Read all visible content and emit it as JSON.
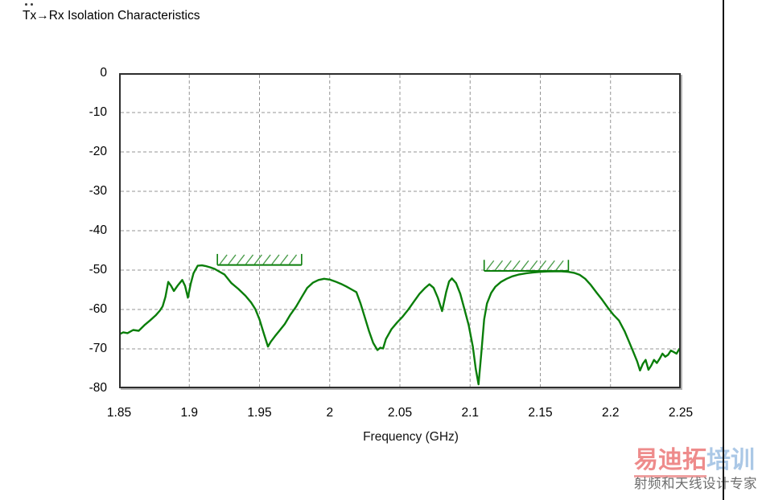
{
  "page": {
    "title": "Tx→Rx Isolation Characteristics"
  },
  "watermark": {
    "brand_red": "易迪拓",
    "brand_blue": "培训",
    "tagline": "射频和天线设计专家",
    "brand_red_color": "#ee8b8b",
    "brand_blue_color": "#abc8e6",
    "tagline_color": "#6d6d6d"
  },
  "chart_data": {
    "type": "line",
    "title": "Tx→Rx Isolation Characteristics",
    "xlabel": "Frequency (GHz)",
    "ylabel": "",
    "xlim": [
      1.85,
      2.25
    ],
    "ylim": [
      -80,
      0
    ],
    "x_tick_values": [
      1.85,
      1.9,
      1.95,
      2.0,
      2.05,
      2.1,
      2.15,
      2.2,
      2.25
    ],
    "x_tick_labels": [
      "1.85",
      "1.9",
      "1.95",
      "2",
      "2.05",
      "2.1",
      "2.15",
      "2.2",
      "2.25"
    ],
    "y_tick_values": [
      0,
      -10,
      -20,
      -30,
      -40,
      -50,
      -60,
      -70,
      -80
    ],
    "y_tick_labels": [
      "0",
      "-10",
      "-20",
      "-30",
      "-40",
      "-50",
      "-60",
      "-70",
      "-80"
    ],
    "grid": "dashed",
    "grid_color": "#949494",
    "frame_color": "#2e2e2e",
    "line_color": "#0a7e0a",
    "spec_bar_color": "#0a7e0a",
    "spec_hatch_color": "#4d9e4d",
    "legend": "none",
    "spec_bars": [
      {
        "name": "tx-band-limit",
        "x1": 1.92,
        "x2": 1.98,
        "level_db": -48.7,
        "tick_height_db": 2.8,
        "hatch": "diagonal"
      },
      {
        "name": "rx-band-limit",
        "x1": 2.11,
        "x2": 2.17,
        "level_db": -50.2,
        "tick_height_db": 2.8,
        "hatch": "diagonal"
      }
    ],
    "series": [
      {
        "name": "Tx→Rx isolation (dB)",
        "x": [
          1.85,
          1.853,
          1.856,
          1.86,
          1.864,
          1.868,
          1.872,
          1.876,
          1.879,
          1.881,
          1.883,
          1.885,
          1.887,
          1.889,
          1.892,
          1.895,
          1.897,
          1.899,
          1.901,
          1.903,
          1.906,
          1.909,
          1.912,
          1.915,
          1.918,
          1.921,
          1.925,
          1.93,
          1.935,
          1.94,
          1.944,
          1.947,
          1.95,
          1.953,
          1.956,
          1.958,
          1.961,
          1.964,
          1.968,
          1.972,
          1.976,
          1.98,
          1.984,
          1.988,
          1.992,
          1.996,
          2.0,
          2.004,
          2.008,
          2.012,
          2.016,
          2.019,
          2.022,
          2.025,
          2.028,
          2.031,
          2.034,
          2.036,
          2.038,
          2.04,
          2.044,
          2.048,
          2.052,
          2.056,
          2.06,
          2.064,
          2.068,
          2.071,
          2.074,
          2.077,
          2.08,
          2.083,
          2.085,
          2.087,
          2.09,
          2.093,
          2.096,
          2.099,
          2.102,
          2.104,
          2.106,
          2.108,
          2.11,
          2.112,
          2.115,
          2.118,
          2.122,
          2.126,
          2.13,
          2.135,
          2.14,
          2.145,
          2.15,
          2.155,
          2.16,
          2.165,
          2.17,
          2.174,
          2.178,
          2.182,
          2.186,
          2.19,
          2.194,
          2.198,
          2.202,
          2.206,
          2.21,
          2.213,
          2.216,
          2.219,
          2.221,
          2.223,
          2.225,
          2.227,
          2.229,
          2.231,
          2.233,
          2.235,
          2.237,
          2.239,
          2.241,
          2.243,
          2.245,
          2.247,
          2.249,
          2.25
        ],
        "y": [
          -66.3,
          -65.8,
          -66.0,
          -65.2,
          -65.4,
          -64.0,
          -62.8,
          -61.5,
          -60.3,
          -59.2,
          -56.8,
          -53.0,
          -54.0,
          -55.3,
          -53.8,
          -52.5,
          -54.0,
          -57.0,
          -53.5,
          -50.8,
          -48.9,
          -48.8,
          -49.0,
          -49.3,
          -49.7,
          -50.3,
          -51.1,
          -53.3,
          -54.8,
          -56.5,
          -58.2,
          -59.9,
          -62.5,
          -66.0,
          -69.4,
          -68.2,
          -66.8,
          -65.5,
          -63.7,
          -61.3,
          -59.3,
          -56.9,
          -54.5,
          -53.2,
          -52.5,
          -52.2,
          -52.4,
          -52.9,
          -53.5,
          -54.2,
          -55.0,
          -55.6,
          -58.5,
          -62.0,
          -65.5,
          -68.5,
          -70.3,
          -69.7,
          -69.9,
          -67.5,
          -65.0,
          -63.3,
          -61.8,
          -60.0,
          -58.0,
          -56.0,
          -54.5,
          -53.6,
          -54.5,
          -57.0,
          -60.4,
          -55.5,
          -52.9,
          -52.1,
          -53.3,
          -56.0,
          -60.0,
          -64.0,
          -69.5,
          -75.0,
          -79.0,
          -71.0,
          -62.5,
          -58.5,
          -55.8,
          -54.2,
          -53.0,
          -52.2,
          -51.6,
          -51.1,
          -50.8,
          -50.6,
          -50.45,
          -50.35,
          -50.3,
          -50.3,
          -50.45,
          -50.7,
          -51.2,
          -52.2,
          -53.8,
          -55.7,
          -57.5,
          -59.5,
          -61.3,
          -62.8,
          -65.5,
          -68.0,
          -70.6,
          -73.2,
          -75.5,
          -73.8,
          -72.8,
          -75.3,
          -74.2,
          -72.8,
          -73.6,
          -72.5,
          -71.2,
          -72.0,
          -71.5,
          -70.4,
          -70.8,
          -71.2,
          -70.0,
          -70.8
        ]
      }
    ]
  }
}
